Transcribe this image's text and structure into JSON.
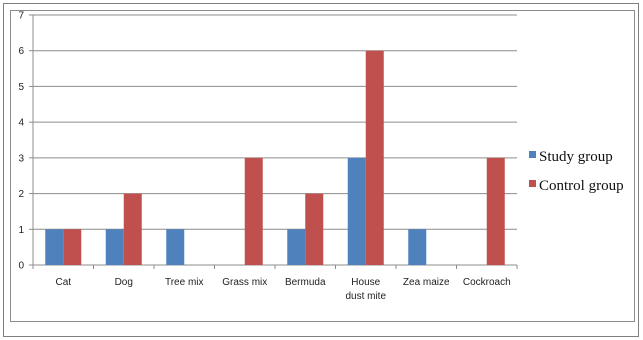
{
  "chart_data": {
    "type": "bar",
    "categories": [
      "Cat",
      "Dog",
      "Tree mix",
      "Grass mix",
      "Bermuda",
      "House\ndust mite",
      "Zea maize",
      "Cockroach"
    ],
    "series": [
      {
        "name": "Study group",
        "values": [
          1,
          1,
          1,
          0,
          1,
          3,
          1,
          0
        ],
        "color": "#4f81bd"
      },
      {
        "name": "Control group",
        "values": [
          1,
          2,
          0,
          3,
          2,
          6,
          0,
          3
        ],
        "color": "#c0504d"
      }
    ],
    "ylim": [
      0,
      7
    ],
    "yticks": [
      0,
      1,
      2,
      3,
      4,
      5,
      6,
      7
    ],
    "grid": true,
    "legend": "right",
    "title": "",
    "xlabel": "",
    "ylabel": ""
  }
}
